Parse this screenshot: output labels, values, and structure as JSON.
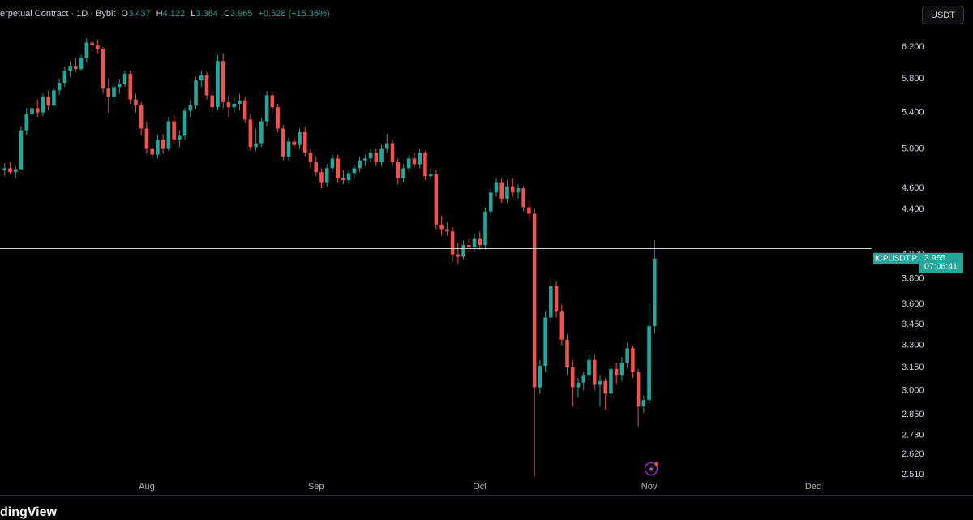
{
  "chart_data": {
    "type": "candlestick",
    "header": "erpetual Contract · 1D · Bybit",
    "ohlc_labels": [
      "O",
      "H",
      "L",
      "C"
    ],
    "change": "+0.528 (+15.36%)",
    "currency": "USDT",
    "symbol": "ICPUSDT.P",
    "countdown": "07:06:41",
    "watermark": "dingView",
    "log": true,
    "grid": false,
    "up_color": "#26a69a",
    "down_color": "#ef5350",
    "reference_line": 4.05,
    "reference_color": "#d1d4dc",
    "ylim": [
      2.49,
      6.85
    ],
    "yticks": [
      {
        "value": 6.2,
        "label": "6.200"
      },
      {
        "value": 5.8,
        "label": "5.800"
      },
      {
        "value": 5.4,
        "label": "5.400"
      },
      {
        "value": 5.0,
        "label": "5.000"
      },
      {
        "value": 4.6,
        "label": "4.600"
      },
      {
        "value": 4.4,
        "label": "4.400"
      },
      {
        "value": 4.0,
        "label": "4.000"
      },
      {
        "value": 3.8,
        "label": "3.800"
      },
      {
        "value": 3.6,
        "label": "3.600"
      },
      {
        "value": 3.45,
        "label": "3.450"
      },
      {
        "value": 3.3,
        "label": "3.300"
      },
      {
        "value": 3.15,
        "label": "3.150"
      },
      {
        "value": 3.0,
        "label": "3.000"
      },
      {
        "value": 2.85,
        "label": "2.850"
      },
      {
        "value": 2.73,
        "label": "2.730"
      },
      {
        "value": 2.62,
        "label": "2.620"
      },
      {
        "value": 2.51,
        "label": "2.510"
      }
    ],
    "categories": [
      null,
      null,
      null,
      null,
      null,
      null,
      null,
      null,
      null,
      null,
      null,
      null,
      null,
      null,
      null,
      null,
      null,
      null,
      null,
      null,
      null,
      null,
      null,
      null,
      null,
      null,
      "Aug",
      null,
      null,
      null,
      null,
      null,
      null,
      null,
      null,
      null,
      null,
      null,
      null,
      null,
      null,
      null,
      null,
      null,
      null,
      null,
      null,
      null,
      null,
      null,
      null,
      null,
      null,
      null,
      null,
      null,
      null,
      "Sep",
      null,
      null,
      null,
      null,
      null,
      null,
      null,
      null,
      null,
      null,
      null,
      null,
      null,
      null,
      null,
      null,
      null,
      null,
      null,
      null,
      null,
      null,
      null,
      null,
      null,
      null,
      null,
      null,
      null,
      "Oct",
      null,
      null,
      null,
      null,
      null,
      null,
      null,
      null,
      null,
      null,
      null,
      null,
      null,
      null,
      null,
      null,
      null,
      null,
      null,
      null,
      null,
      null,
      null,
      null,
      null,
      null,
      null,
      null,
      null,
      null,
      "Nov",
      null,
      null,
      null,
      null,
      null,
      null,
      null,
      null,
      null,
      null,
      null,
      null,
      null,
      null,
      null,
      null,
      null,
      null,
      null,
      null,
      null,
      null,
      null,
      null,
      null,
      null,
      null,
      null,
      null,
      "Dec",
      null,
      null,
      null,
      null,
      null,
      null,
      null,
      null,
      null,
      null
    ],
    "open": [
      4.78,
      4.8,
      4.76,
      4.79,
      5.2,
      5.38,
      5.45,
      5.4,
      5.58,
      5.48,
      5.66,
      5.75,
      5.9,
      5.96,
      5.92,
      6.06,
      6.26,
      6.22,
      6.18,
      5.68,
      5.58,
      5.7,
      5.74,
      5.86,
      5.55,
      5.48,
      5.22,
      5.0,
      4.94,
      5.1,
      5.0,
      5.3,
      5.1,
      5.14,
      5.42,
      5.48,
      5.78,
      5.84,
      5.6,
      5.46,
      6.02,
      5.52,
      5.46,
      5.5,
      5.54,
      5.32,
      5.02,
      5.06,
      5.3,
      5.6,
      5.46,
      5.22,
      4.92,
      5.08,
      5.04,
      5.18,
      4.96,
      4.86,
      4.76,
      4.66,
      4.8,
      4.9,
      4.7,
      4.68,
      4.75,
      4.8,
      4.88,
      4.9,
      4.96,
      4.86,
      5.0,
      5.06,
      4.86,
      4.7,
      4.8,
      4.9,
      4.84,
      4.96,
      4.72,
      4.74,
      4.26,
      4.22,
      4.2,
      4.0,
      3.98,
      4.08,
      4.06,
      4.14,
      4.08,
      4.38,
      4.56,
      4.66,
      4.5,
      4.62,
      4.56,
      4.6,
      4.42,
      4.36,
      3.02,
      3.16,
      3.5,
      3.74,
      3.55,
      3.34,
      3.15,
      3.02,
      3.05,
      3.1,
      3.2,
      3.04,
      3.06,
      2.98,
      3.14,
      3.1,
      3.18,
      3.28,
      3.12,
      2.9,
      2.94,
      3.437,
      null,
      null,
      null,
      null,
      null,
      null,
      null,
      null,
      null,
      null,
      null,
      null,
      null,
      null,
      null,
      null,
      null,
      null,
      null,
      null,
      null,
      null,
      null,
      null,
      null,
      null,
      null,
      null,
      null,
      null,
      null,
      null,
      null,
      null,
      null,
      null,
      null,
      null,
      null
    ],
    "high": [
      4.85,
      4.86,
      4.82,
      5.25,
      5.45,
      5.5,
      5.55,
      5.62,
      5.66,
      5.7,
      5.8,
      5.95,
      6.02,
      6.05,
      6.1,
      6.32,
      6.36,
      6.3,
      6.2,
      5.8,
      5.75,
      5.8,
      5.9,
      5.9,
      5.62,
      5.52,
      5.3,
      5.08,
      5.15,
      5.16,
      5.35,
      5.36,
      5.2,
      5.45,
      5.55,
      5.82,
      5.9,
      5.88,
      5.66,
      6.1,
      6.12,
      5.6,
      5.58,
      5.62,
      5.58,
      5.38,
      5.22,
      5.34,
      5.65,
      5.64,
      5.5,
      5.26,
      5.12,
      5.14,
      5.22,
      5.24,
      5.0,
      4.92,
      4.8,
      4.84,
      4.94,
      4.94,
      4.78,
      4.78,
      4.84,
      4.92,
      4.94,
      5.0,
      5.0,
      5.04,
      5.16,
      5.1,
      4.9,
      4.84,
      4.94,
      4.96,
      5.0,
      4.98,
      4.8,
      4.78,
      4.34,
      4.28,
      4.24,
      4.1,
      4.12,
      4.14,
      4.18,
      4.2,
      4.42,
      4.6,
      4.7,
      4.7,
      4.68,
      4.7,
      4.64,
      4.62,
      4.48,
      4.4,
      3.2,
      3.55,
      3.8,
      3.78,
      3.6,
      3.38,
      3.2,
      3.08,
      3.12,
      3.24,
      3.24,
      3.1,
      3.08,
      3.16,
      3.18,
      3.22,
      3.32,
      3.3,
      3.14,
      2.97,
      3.6,
      4.122,
      null,
      null,
      null,
      null,
      null,
      null,
      null,
      null,
      null,
      null,
      null,
      null,
      null,
      null,
      null,
      null,
      null,
      null,
      null,
      null,
      null,
      null,
      null,
      null,
      null,
      null,
      null,
      null,
      null,
      null,
      null,
      null,
      null,
      null,
      null,
      null,
      null,
      null,
      null
    ],
    "low": [
      4.72,
      4.74,
      4.7,
      4.78,
      5.15,
      5.3,
      5.35,
      5.36,
      5.42,
      5.45,
      5.6,
      5.7,
      5.82,
      5.88,
      5.9,
      6.0,
      6.15,
      6.12,
      5.62,
      5.4,
      5.5,
      5.62,
      5.7,
      5.5,
      5.4,
      5.15,
      4.95,
      4.88,
      4.9,
      4.95,
      4.98,
      5.05,
      5.02,
      5.1,
      5.35,
      5.44,
      5.7,
      5.55,
      5.4,
      5.42,
      5.45,
      5.35,
      5.4,
      5.42,
      5.28,
      4.98,
      4.98,
      5.02,
      5.25,
      5.4,
      5.18,
      4.88,
      4.88,
      5.0,
      5.0,
      4.92,
      4.8,
      4.72,
      4.6,
      4.62,
      4.76,
      4.66,
      4.64,
      4.64,
      4.7,
      4.76,
      4.82,
      4.86,
      4.82,
      4.82,
      4.96,
      4.82,
      4.64,
      4.66,
      4.76,
      4.8,
      4.8,
      4.68,
      4.68,
      4.22,
      4.16,
      4.16,
      3.94,
      3.92,
      3.96,
      4.02,
      4.02,
      4.04,
      4.04,
      4.34,
      4.52,
      4.46,
      4.46,
      4.52,
      4.5,
      4.38,
      4.3,
      2.5,
      2.98,
      3.12,
      3.46,
      3.5,
      3.3,
      3.1,
      2.9,
      2.96,
      3.0,
      3.06,
      3.0,
      2.9,
      2.88,
      2.96,
      3.04,
      3.06,
      3.14,
      3.08,
      2.78,
      2.86,
      2.92,
      3.384,
      null,
      null,
      null,
      null,
      null,
      null,
      null,
      null,
      null,
      null,
      null,
      null,
      null,
      null,
      null,
      null,
      null,
      null,
      null,
      null,
      null,
      null,
      null,
      null,
      null,
      null,
      null,
      null,
      null,
      null,
      null,
      null,
      null,
      null,
      null,
      null,
      null,
      null,
      null
    ],
    "close": [
      4.8,
      4.76,
      4.79,
      5.2,
      5.38,
      5.45,
      5.4,
      5.58,
      5.48,
      5.66,
      5.75,
      5.9,
      5.96,
      5.92,
      6.06,
      6.26,
      6.22,
      6.18,
      5.68,
      5.58,
      5.7,
      5.74,
      5.86,
      5.55,
      5.48,
      5.22,
      5.0,
      4.94,
      5.1,
      5.0,
      5.3,
      5.1,
      5.14,
      5.42,
      5.48,
      5.78,
      5.84,
      5.6,
      5.46,
      6.02,
      5.52,
      5.46,
      5.5,
      5.54,
      5.32,
      5.02,
      5.06,
      5.3,
      5.6,
      5.46,
      5.22,
      4.92,
      5.08,
      5.04,
      5.18,
      4.96,
      4.86,
      4.76,
      4.66,
      4.8,
      4.9,
      4.7,
      4.68,
      4.75,
      4.8,
      4.88,
      4.9,
      4.96,
      4.86,
      5.0,
      5.06,
      4.86,
      4.7,
      4.8,
      4.9,
      4.84,
      4.96,
      4.72,
      4.74,
      4.26,
      4.22,
      4.2,
      4.0,
      3.98,
      4.08,
      4.06,
      4.14,
      4.08,
      4.38,
      4.56,
      4.66,
      4.5,
      4.62,
      4.56,
      4.6,
      4.42,
      4.36,
      3.02,
      3.16,
      3.5,
      3.74,
      3.55,
      3.34,
      3.15,
      3.02,
      3.05,
      3.1,
      3.2,
      3.04,
      3.06,
      2.98,
      3.14,
      3.1,
      3.18,
      3.28,
      3.12,
      2.9,
      2.94,
      3.437,
      3.965,
      null,
      null,
      null,
      null,
      null,
      null,
      null,
      null,
      null,
      null,
      null,
      null,
      null,
      null,
      null,
      null,
      null,
      null,
      null,
      null,
      null,
      null,
      null,
      null,
      null,
      null,
      null,
      null,
      null,
      null,
      null,
      null,
      null,
      null,
      null,
      null,
      null,
      null,
      null
    ]
  }
}
